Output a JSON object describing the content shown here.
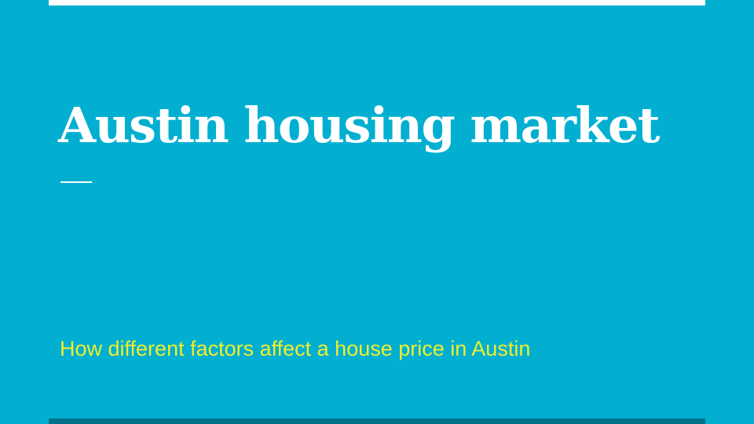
{
  "slide": {
    "title": "Austin housing market",
    "subtitle": "How different factors affect a house price in Austin"
  },
  "colors": {
    "background": "#02AFD1",
    "title": "#FFFFFF",
    "subtitle": "#EFEF2B",
    "top_bar": "#FFFFFF",
    "bottom_bar": "#02728A"
  }
}
